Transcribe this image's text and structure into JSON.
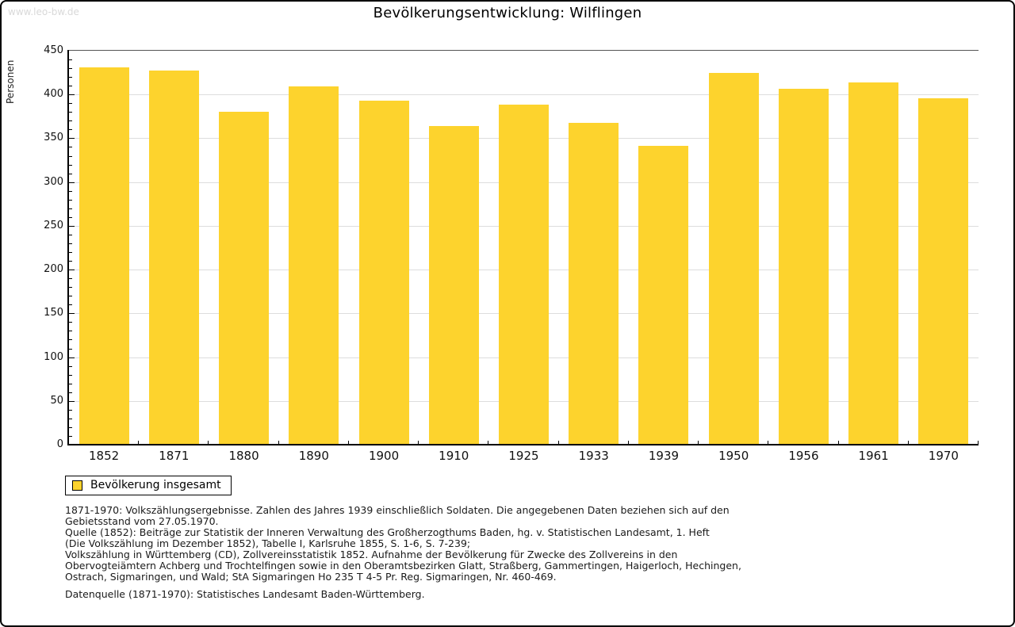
{
  "window": {
    "watermark": "www.leo-bw.de"
  },
  "title": "Bevölkerungsentwicklung: Wilflingen",
  "colors": {
    "bar": "#FDD32D",
    "grid": "#DDDDDD",
    "axis": "#000000",
    "watermark": "#D9D9D9"
  },
  "chart_data": {
    "type": "bar",
    "title": "Bevölkerungsentwicklung: Wilflingen",
    "xlabel": "",
    "ylabel": "Personen",
    "categories": [
      "1852",
      "1871",
      "1880",
      "1890",
      "1900",
      "1910",
      "1925",
      "1933",
      "1939",
      "1950",
      "1956",
      "1961",
      "1970"
    ],
    "values": [
      431,
      427,
      380,
      409,
      393,
      364,
      388,
      368,
      341,
      425,
      407,
      414,
      396
    ],
    "series_name": "Bevölkerung insgesamt",
    "ylim": [
      0,
      450
    ],
    "ytick_step": 50,
    "yminor_step": 10,
    "grid": true,
    "legend_position": "below-left"
  },
  "legend": {
    "label": "Bevölkerung insgesamt"
  },
  "footer": {
    "lines": [
      "1871-1970: Volkszählungsergebnisse. Zahlen des Jahres 1939 einschließlich Soldaten. Die angegebenen Daten beziehen sich auf den",
      "Gebietsstand vom 27.05.1970.",
      "Quelle (1852): Beiträge zur Statistik der Inneren Verwaltung des Großherzogthums Baden, hg. v. Statistischen Landesamt, 1. Heft",
      "(Die Volkszählung im Dezember 1852), Tabelle I, Karlsruhe 1855, S. 1-6, S. 7-239;",
      "Volkszählung in Württemberg (CD), Zollvereinsstatistik 1852. Aufnahme der Bevölkerung für Zwecke des Zollvereins in den",
      "Obervogteiämtern Achberg und Trochtelfingen sowie in den Oberamtsbezirken Glatt, Straßberg, Gammertingen, Haigerloch, Hechingen,",
      "Ostrach, Sigmaringen, und Wald; StA Sigmaringen Ho 235 T 4-5 Pr. Reg. Sigmaringen, Nr. 460-469."
    ],
    "datasource": "Datenquelle (1871-1970): Statistisches Landesamt Baden-Württemberg."
  }
}
